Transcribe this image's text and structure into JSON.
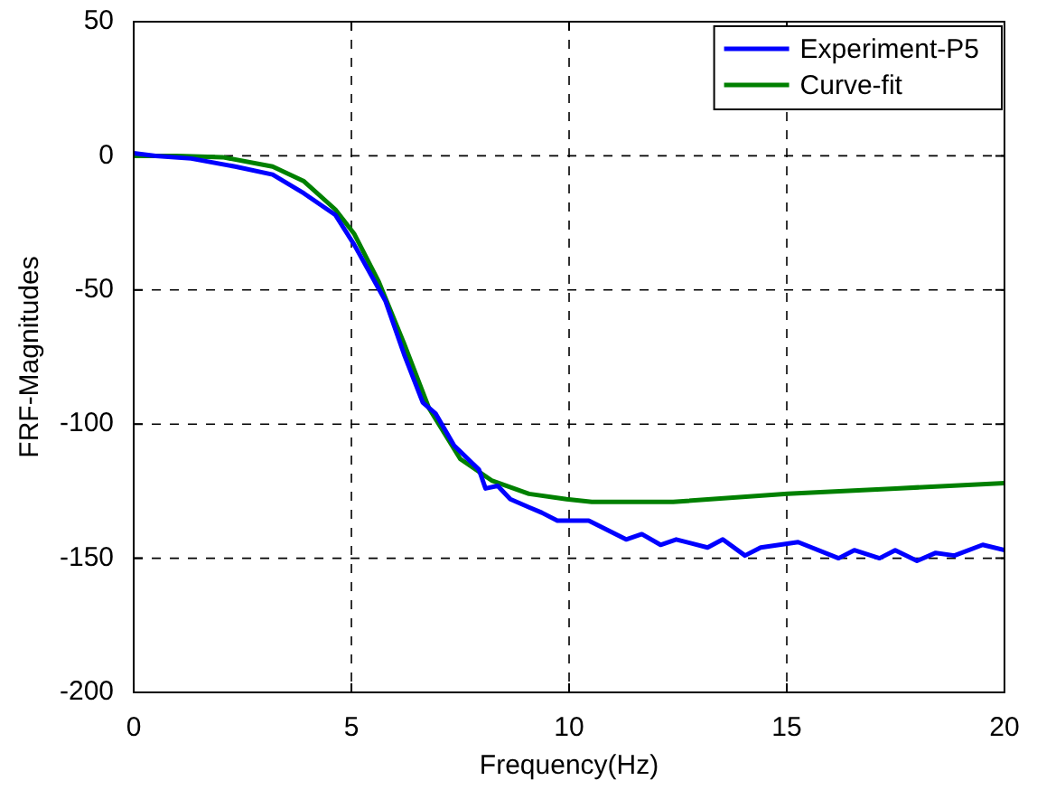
{
  "chart_data": {
    "type": "line",
    "xlabel": "Frequency(Hz)",
    "ylabel": "FRF-Magnitudes",
    "xlim": [
      0,
      20
    ],
    "xticks": [
      0,
      5,
      10,
      15,
      20
    ],
    "ylim": [
      -200,
      50
    ],
    "yticks": [
      -200,
      -150,
      -100,
      -50,
      0,
      50
    ],
    "grid": true,
    "legend": "top right",
    "line_style": "solid",
    "marker": "none",
    "series": [
      {
        "name": "Experiment-P5",
        "color": "#0000ff",
        "x": [
          0,
          0.5,
          1.32,
          2.33,
          3.19,
          3.91,
          4.63,
          5.06,
          5.78,
          6.21,
          6.64,
          6.93,
          7.36,
          7.93,
          8.08,
          8.36,
          8.65,
          9.08,
          9.37,
          9.73,
          10.45,
          11.31,
          11.67,
          12.1,
          12.46,
          13.18,
          13.53,
          14.04,
          14.4,
          15.26,
          16.19,
          16.55,
          17.13,
          17.49,
          17.99,
          18.42,
          18.85,
          19.5,
          20
        ],
        "values": [
          1,
          0,
          -1,
          -4,
          -7,
          -14,
          -22,
          -33,
          -54,
          -74,
          -92,
          -96,
          -108,
          -117,
          -124,
          -123,
          -128,
          -131,
          -133,
          -136,
          -136,
          -143,
          -141,
          -145,
          -143,
          -146,
          -143,
          -149,
          -146,
          -144,
          -150,
          -147,
          -150,
          -147,
          -151,
          -148,
          -149,
          -145,
          -147
        ]
      },
      {
        "name": "Curve-fit",
        "color": "#008000",
        "x": [
          0,
          1,
          2.04,
          3.19,
          3.91,
          4.63,
          5.06,
          5.63,
          6.21,
          6.78,
          7.5,
          8.22,
          9.08,
          9.94,
          10.52,
          12.39,
          15.02,
          17.5,
          20
        ],
        "values": [
          0,
          0,
          -0.5,
          -4,
          -9.5,
          -20,
          -29,
          -47,
          -70,
          -94,
          -113,
          -121,
          -126,
          -128,
          -129,
          -129,
          -126,
          -124,
          -122
        ]
      }
    ]
  }
}
